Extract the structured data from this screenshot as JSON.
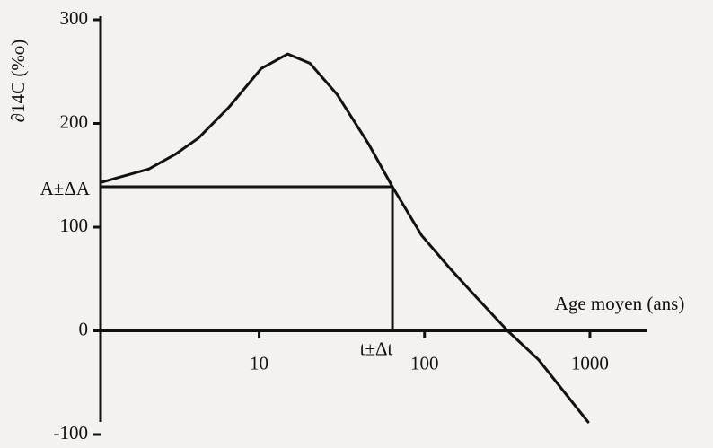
{
  "chart_data": {
    "type": "line",
    "x_label": "Age moyen (ans)",
    "y_label": "∂14C (%o)",
    "x": [
      1.1,
      2.15,
      3.1,
      4.3,
      6.6,
      10.3,
      14.9,
      20.3,
      29.6,
      46,
      64,
      96,
      141,
      204,
      318,
      490,
      975
    ],
    "series": [
      {
        "name": "∂14C",
        "color": "#111111",
        "values": [
          143,
          156,
          170,
          186,
          216,
          253,
          267,
          258,
          228,
          180,
          139,
          92,
          61,
          33,
          0,
          -28,
          -88
        ]
      }
    ],
    "xlim": [
      1.1,
      2200
    ],
    "ylim": [
      -100,
      300
    ],
    "xticks": [
      10,
      100,
      1000
    ],
    "yticks": [
      300,
      200,
      100,
      0,
      -100
    ],
    "log_x": true,
    "marker": {
      "x": 64,
      "y": 139,
      "x_label": "t±Δt",
      "y_label": "A±ΔA"
    }
  }
}
